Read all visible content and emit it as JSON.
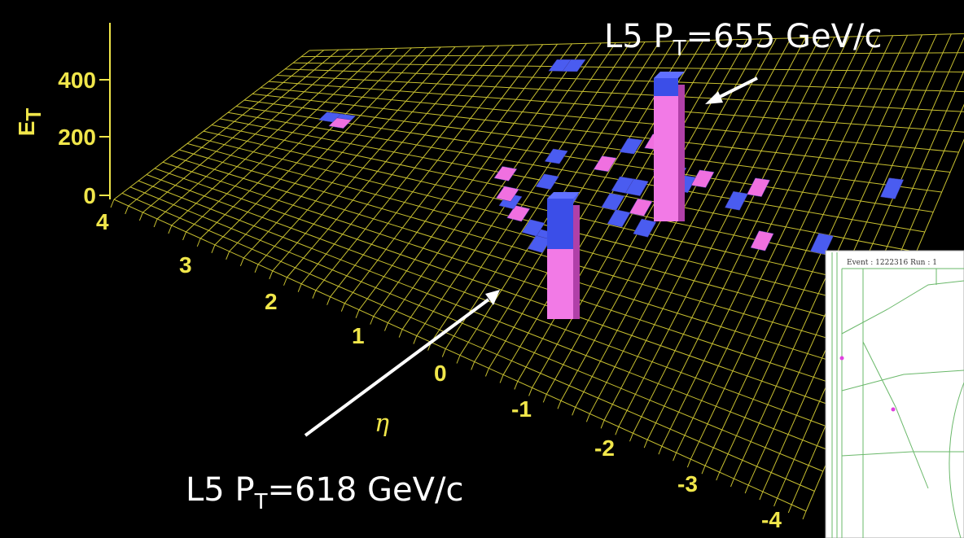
{
  "energy_axis": {
    "label": "E",
    "label_sub": "T",
    "ticks": [
      "400",
      "200",
      "0"
    ]
  },
  "eta_axis": {
    "label": "η",
    "ticks": [
      "4",
      "3",
      "2",
      "1",
      "0",
      "-1",
      "-2",
      "-3",
      "-4"
    ]
  },
  "annotations": [
    {
      "prefix": "L5 P",
      "sub": "T",
      "suffix": "=655 GeV/c"
    },
    {
      "prefix": "L5 P",
      "sub": "T",
      "suffix": "=618 GeV/c"
    }
  ],
  "inset": {
    "header": "Event : 1222316 Run : 1"
  }
}
